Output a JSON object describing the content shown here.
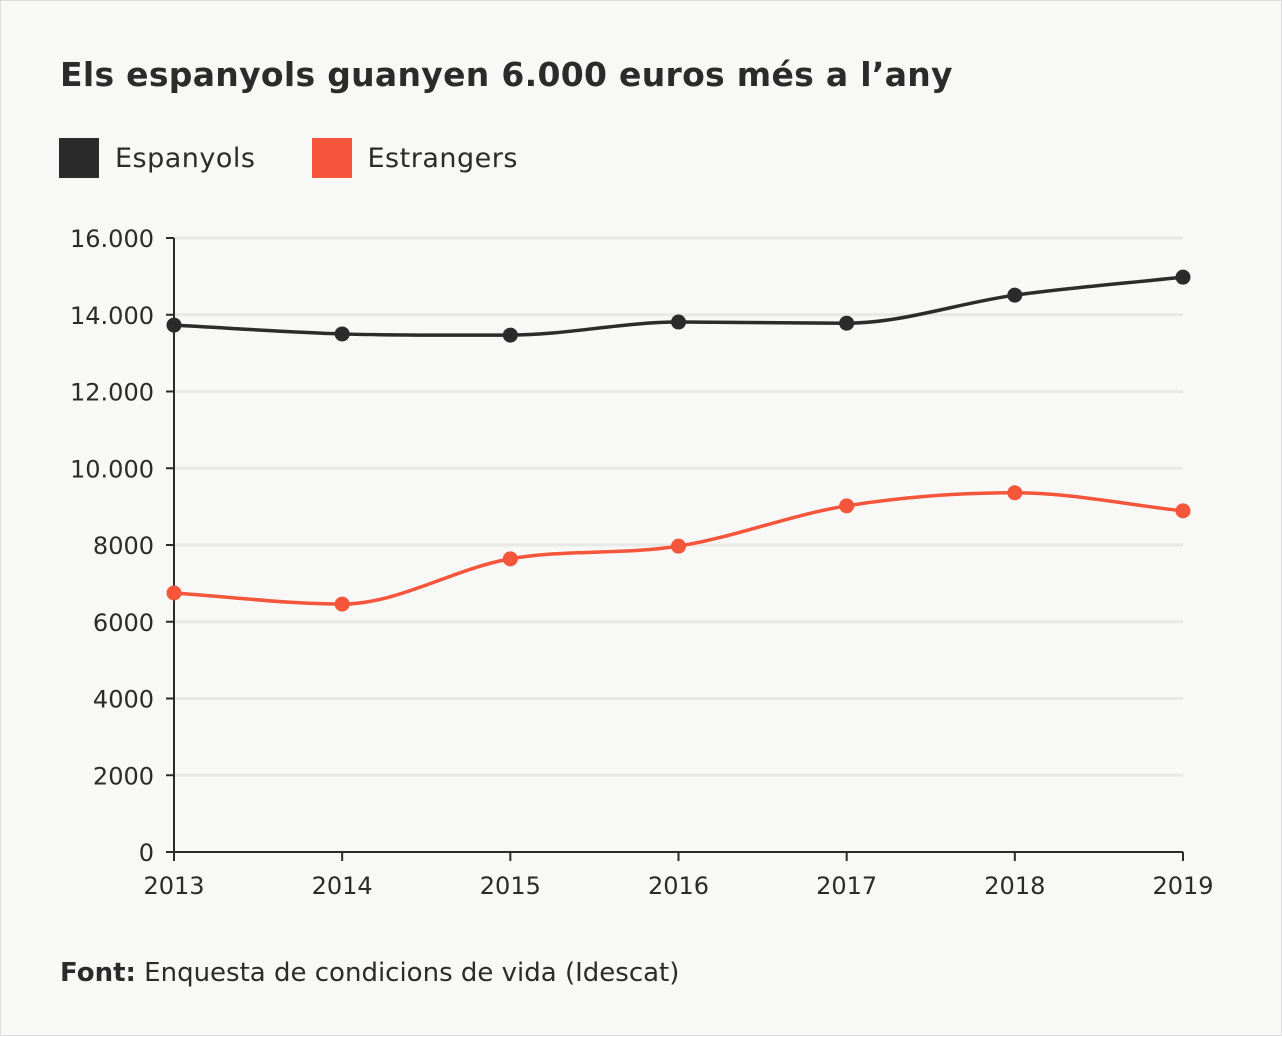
{
  "chart_data": {
    "type": "line",
    "title": "Els espanyols guanyen 6.000 euros més a l’any",
    "x": [
      "2013",
      "2014",
      "2015",
      "2016",
      "2017",
      "2018",
      "2019"
    ],
    "series": [
      {
        "name": "Espanyols",
        "color": "#2b2b2b",
        "values": [
          13730,
          13500,
          13470,
          13810,
          13780,
          14510,
          14980
        ]
      },
      {
        "name": "Estrangers",
        "color": "#f4553b",
        "values": [
          6750,
          6460,
          7640,
          7970,
          9020,
          9360,
          8890
        ]
      }
    ],
    "ylim": [
      0,
      16000
    ],
    "yticks": [
      0,
      2000,
      4000,
      6000,
      8000,
      10000,
      12000,
      14000,
      16000
    ],
    "ytick_labels": [
      "0",
      "2000",
      "4000",
      "6000",
      "8000",
      "10.000",
      "12.000",
      "14.000",
      "16.000"
    ],
    "grid": true,
    "legend": "top-left",
    "smooth": true
  },
  "source": {
    "label": "Font:",
    "text": "Enquesta de condicions de vida (Idescat)"
  }
}
